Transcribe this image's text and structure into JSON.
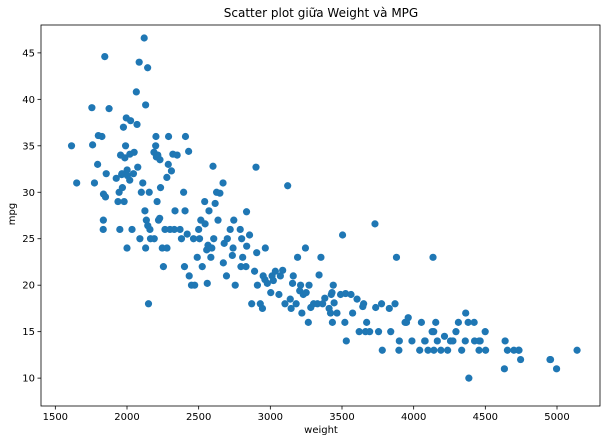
{
  "chart_data": {
    "type": "scatter",
    "title": "Scatter plot giữa Weight và MPG",
    "xlabel": "weight",
    "ylabel": "mpg",
    "xlim": [
      1400,
      5300
    ],
    "ylim": [
      7,
      48
    ],
    "x_ticks": [
      1500,
      2000,
      2500,
      3000,
      3500,
      4000,
      4500,
      5000
    ],
    "y_ticks": [
      10,
      15,
      20,
      25,
      30,
      35,
      40,
      45
    ],
    "grid": false,
    "legend": "none",
    "marker_color": "#1f77b4",
    "points": [
      [
        1613,
        35
      ],
      [
        1649,
        31
      ],
      [
        1755,
        39.1
      ],
      [
        1760,
        35.1
      ],
      [
        1773,
        31
      ],
      [
        1795,
        33
      ],
      [
        1800,
        36.1
      ],
      [
        1825,
        36
      ],
      [
        1834,
        26
      ],
      [
        1835,
        27
      ],
      [
        1836,
        29.8
      ],
      [
        1845,
        44.6
      ],
      [
        1850,
        29.5
      ],
      [
        1855,
        32
      ],
      [
        1875,
        39
      ],
      [
        1925,
        31.5
      ],
      [
        1937,
        29
      ],
      [
        1945,
        30
      ],
      [
        1950,
        26
      ],
      [
        1955,
        34
      ],
      [
        1963,
        31.9
      ],
      [
        1965,
        32
      ],
      [
        1968,
        30.5
      ],
      [
        1975,
        37
      ],
      [
        1980,
        29
      ],
      [
        1985,
        33.7
      ],
      [
        1990,
        35
      ],
      [
        1995,
        38
      ],
      [
        2000,
        24
      ],
      [
        2001,
        32.4
      ],
      [
        2003,
        31.8
      ],
      [
        2019,
        31.3
      ],
      [
        2020,
        34.1
      ],
      [
        2025,
        37.7
      ],
      [
        2035,
        26
      ],
      [
        2045,
        32
      ],
      [
        2050,
        34.3
      ],
      [
        2065,
        40.8
      ],
      [
        2070,
        37.3
      ],
      [
        2075,
        32.7
      ],
      [
        2085,
        44
      ],
      [
        2090,
        25
      ],
      [
        2100,
        30
      ],
      [
        2110,
        31
      ],
      [
        2120,
        46.6
      ],
      [
        2125,
        28
      ],
      [
        2130,
        24
      ],
      [
        2130,
        39.4
      ],
      [
        2135,
        27
      ],
      [
        2144,
        43.4
      ],
      [
        2145,
        26.4
      ],
      [
        2150,
        18
      ],
      [
        2155,
        30
      ],
      [
        2160,
        26
      ],
      [
        2164,
        25
      ],
      [
        2188,
        34.3
      ],
      [
        2190,
        25
      ],
      [
        2200,
        35
      ],
      [
        2202,
        36
      ],
      [
        2205,
        33.8
      ],
      [
        2210,
        29
      ],
      [
        2215,
        34
      ],
      [
        2220,
        27
      ],
      [
        2228,
        27.2
      ],
      [
        2230,
        33.5
      ],
      [
        2234,
        30.5
      ],
      [
        2246,
        24
      ],
      [
        2254,
        22
      ],
      [
        2265,
        26
      ],
      [
        2279,
        24
      ],
      [
        2278,
        31.6
      ],
      [
        2288,
        33
      ],
      [
        2290,
        36
      ],
      [
        2300,
        26
      ],
      [
        2310,
        32.3
      ],
      [
        2320,
        34.1
      ],
      [
        2330,
        26
      ],
      [
        2335,
        28
      ],
      [
        2350,
        34
      ],
      [
        2370,
        26
      ],
      [
        2380,
        25
      ],
      [
        2395,
        30
      ],
      [
        2401,
        22
      ],
      [
        2405,
        28
      ],
      [
        2408,
        36
      ],
      [
        2420,
        25.5
      ],
      [
        2430,
        34.4
      ],
      [
        2434,
        21
      ],
      [
        2450,
        20
      ],
      [
        2464,
        25
      ],
      [
        2472,
        20
      ],
      [
        2490,
        23
      ],
      [
        2500,
        26
      ],
      [
        2506,
        25
      ],
      [
        2515,
        27
      ],
      [
        2525,
        22
      ],
      [
        2542,
        29
      ],
      [
        2545,
        26.6
      ],
      [
        2556,
        23.8
      ],
      [
        2560,
        20.2
      ],
      [
        2565,
        24.3
      ],
      [
        2572,
        28
      ],
      [
        2585,
        23
      ],
      [
        2592,
        24
      ],
      [
        2600,
        32.8
      ],
      [
        2605,
        25
      ],
      [
        2615,
        28.8
      ],
      [
        2625,
        30
      ],
      [
        2635,
        27
      ],
      [
        2648,
        29.9
      ],
      [
        2670,
        31
      ],
      [
        2672,
        22.4
      ],
      [
        2678,
        24.5
      ],
      [
        2694,
        21
      ],
      [
        2700,
        25
      ],
      [
        2720,
        26
      ],
      [
        2735,
        23.2
      ],
      [
        2740,
        24
      ],
      [
        2745,
        27
      ],
      [
        2755,
        20
      ],
      [
        2790,
        26
      ],
      [
        2795,
        22
      ],
      [
        2800,
        25
      ],
      [
        2807,
        23
      ],
      [
        2830,
        22
      ],
      [
        2834,
        27.9
      ],
      [
        2835,
        24.2
      ],
      [
        2855,
        25.4
      ],
      [
        2870,
        18
      ],
      [
        2890,
        21.5
      ],
      [
        2900,
        32.7
      ],
      [
        2905,
        23.5
      ],
      [
        2910,
        20
      ],
      [
        2930,
        18
      ],
      [
        2945,
        17.5
      ],
      [
        2950,
        21
      ],
      [
        2962,
        20.6
      ],
      [
        2965,
        24
      ],
      [
        2979,
        20.2
      ],
      [
        3003,
        19.2
      ],
      [
        3012,
        21
      ],
      [
        3021,
        20.5
      ],
      [
        3035,
        21.5
      ],
      [
        3060,
        19
      ],
      [
        3070,
        21
      ],
      [
        3086,
        21.6
      ],
      [
        3102,
        18
      ],
      [
        3121,
        30.7
      ],
      [
        3139,
        18.5
      ],
      [
        3145,
        17.5
      ],
      [
        3155,
        20.2
      ],
      [
        3160,
        21
      ],
      [
        3180,
        18
      ],
      [
        3190,
        23
      ],
      [
        3205,
        19.4
      ],
      [
        3211,
        20
      ],
      [
        3220,
        17
      ],
      [
        3230,
        19
      ],
      [
        3245,
        24
      ],
      [
        3250,
        19.2
      ],
      [
        3265,
        16
      ],
      [
        3270,
        20
      ],
      [
        3282,
        17.6
      ],
      [
        3302,
        18
      ],
      [
        3329,
        18
      ],
      [
        3340,
        21.1
      ],
      [
        3353,
        23
      ],
      [
        3365,
        18
      ],
      [
        3380,
        18.6
      ],
      [
        3410,
        17.5
      ],
      [
        3420,
        17
      ],
      [
        3425,
        19
      ],
      [
        3430,
        19.2
      ],
      [
        3433,
        16
      ],
      [
        3439,
        20
      ],
      [
        3445,
        18.1
      ],
      [
        3465,
        17
      ],
      [
        3490,
        19
      ],
      [
        3504,
        25.4
      ],
      [
        3520,
        16
      ],
      [
        3525,
        19.1
      ],
      [
        3530,
        14
      ],
      [
        3563,
        19
      ],
      [
        3574,
        17
      ],
      [
        3605,
        18.5
      ],
      [
        3620,
        15
      ],
      [
        3645,
        17.7
      ],
      [
        3651,
        18
      ],
      [
        3664,
        15
      ],
      [
        3672,
        16
      ],
      [
        3693,
        15
      ],
      [
        3730,
        26.6
      ],
      [
        3735,
        17.6
      ],
      [
        3755,
        15
      ],
      [
        3776,
        18
      ],
      [
        3781,
        13
      ],
      [
        3830,
        17.5
      ],
      [
        3840,
        15
      ],
      [
        3870,
        18
      ],
      [
        3880,
        23
      ],
      [
        3897,
        13
      ],
      [
        3900,
        14
      ],
      [
        3940,
        16
      ],
      [
        3950,
        16
      ],
      [
        3962,
        16.5
      ],
      [
        3988,
        14
      ],
      [
        4042,
        13
      ],
      [
        4054,
        16
      ],
      [
        4077,
        14
      ],
      [
        4080,
        14
      ],
      [
        4100,
        13
      ],
      [
        4129,
        15
      ],
      [
        4135,
        23
      ],
      [
        4140,
        15
      ],
      [
        4141,
        13
      ],
      [
        4154,
        16
      ],
      [
        4165,
        14
      ],
      [
        4190,
        13
      ],
      [
        4215,
        14.5
      ],
      [
        4237,
        13
      ],
      [
        4257,
        14
      ],
      [
        4274,
        14
      ],
      [
        4295,
        15
      ],
      [
        4312,
        16
      ],
      [
        4335,
        13
      ],
      [
        4360,
        14
      ],
      [
        4363,
        17
      ],
      [
        4380,
        16
      ],
      [
        4385,
        10
      ],
      [
        4422,
        16
      ],
      [
        4425,
        14
      ],
      [
        4456,
        13
      ],
      [
        4457,
        14
      ],
      [
        4464,
        14
      ],
      [
        4499,
        15
      ],
      [
        4502,
        13
      ],
      [
        4633,
        11
      ],
      [
        4638,
        14
      ],
      [
        4654,
        13
      ],
      [
        4699,
        13
      ],
      [
        4732,
        13
      ],
      [
        4735,
        13
      ],
      [
        4746,
        12
      ],
      [
        4951,
        12
      ],
      [
        4955,
        12
      ],
      [
        4997,
        11
      ],
      [
        5140,
        13
      ]
    ]
  }
}
